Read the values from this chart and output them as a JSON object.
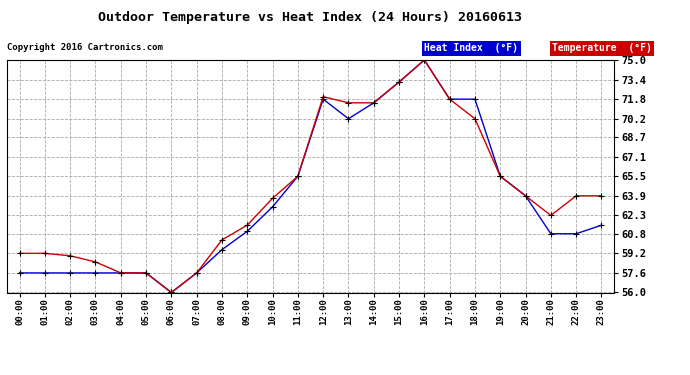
{
  "title": "Outdoor Temperature vs Heat Index (24 Hours) 20160613",
  "copyright": "Copyright 2016 Cartronics.com",
  "x_labels": [
    "00:00",
    "01:00",
    "02:00",
    "03:00",
    "04:00",
    "05:00",
    "06:00",
    "07:00",
    "08:00",
    "09:00",
    "10:00",
    "11:00",
    "12:00",
    "13:00",
    "14:00",
    "15:00",
    "16:00",
    "17:00",
    "18:00",
    "19:00",
    "20:00",
    "21:00",
    "22:00",
    "23:00"
  ],
  "temperature": [
    59.2,
    59.2,
    59.0,
    58.5,
    57.6,
    57.6,
    56.0,
    57.6,
    60.3,
    61.5,
    63.7,
    65.5,
    72.0,
    71.5,
    71.5,
    73.2,
    75.0,
    71.8,
    70.2,
    65.5,
    63.9,
    62.3,
    63.9,
    63.9
  ],
  "heat_index": [
    57.6,
    57.6,
    57.6,
    57.6,
    57.6,
    57.6,
    56.0,
    57.6,
    59.5,
    61.0,
    63.0,
    65.5,
    71.8,
    70.2,
    71.5,
    73.2,
    75.0,
    71.8,
    71.8,
    65.5,
    63.9,
    60.8,
    60.8,
    61.5
  ],
  "temp_color": "#cc0000",
  "heat_color": "#0000cc",
  "bg_color": "#ffffff",
  "plot_bg_color": "#ffffff",
  "grid_color": "#aaaaaa",
  "ylim": [
    56.0,
    75.0
  ],
  "yticks": [
    56.0,
    57.6,
    59.2,
    60.8,
    62.3,
    63.9,
    65.5,
    67.1,
    68.7,
    70.2,
    71.8,
    73.4,
    75.0
  ],
  "legend_heat_bg": "#0000cc",
  "legend_temp_bg": "#cc0000",
  "legend_heat_text": "Heat Index  (°F)",
  "legend_temp_text": "Temperature  (°F)"
}
